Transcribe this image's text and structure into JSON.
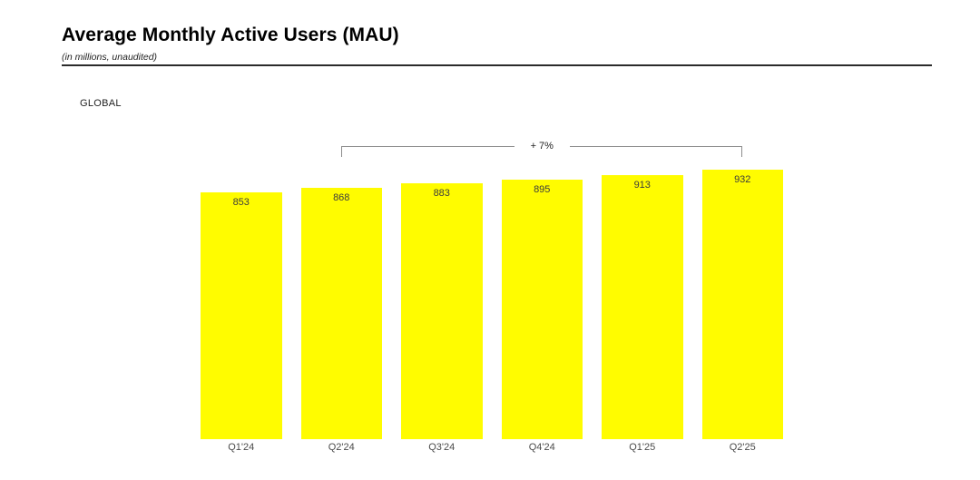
{
  "page": {
    "title": "Average Monthly Active Users (MAU)",
    "subtitle": "(in millions, unaudited)"
  },
  "section": {
    "label": "GLOBAL"
  },
  "annotation": {
    "label": "+ 7%",
    "from": "Q2'24",
    "to": "Q2'25"
  },
  "colors": {
    "bar_fill": "#FFFC00",
    "value_label": "#3c3c3c",
    "axis_label": "#4a4a4a",
    "bracket_line": "#8c8c8c"
  },
  "chart_data": {
    "type": "bar",
    "title": "Average Monthly Active Users (MAU)",
    "subtitle": "(in millions, unaudited)",
    "region": "GLOBAL",
    "categories": [
      "Q1'24",
      "Q2'24",
      "Q3'24",
      "Q4'24",
      "Q1'25",
      "Q2'25"
    ],
    "values": [
      853,
      868,
      883,
      895,
      913,
      932
    ],
    "unit": "millions",
    "ylim": [
      0,
      940
    ],
    "grid": false,
    "legend": false,
    "value_labels_shown": true,
    "annotations": [
      {
        "label": "+ 7%",
        "from": "Q2'24",
        "to": "Q2'25"
      }
    ]
  }
}
